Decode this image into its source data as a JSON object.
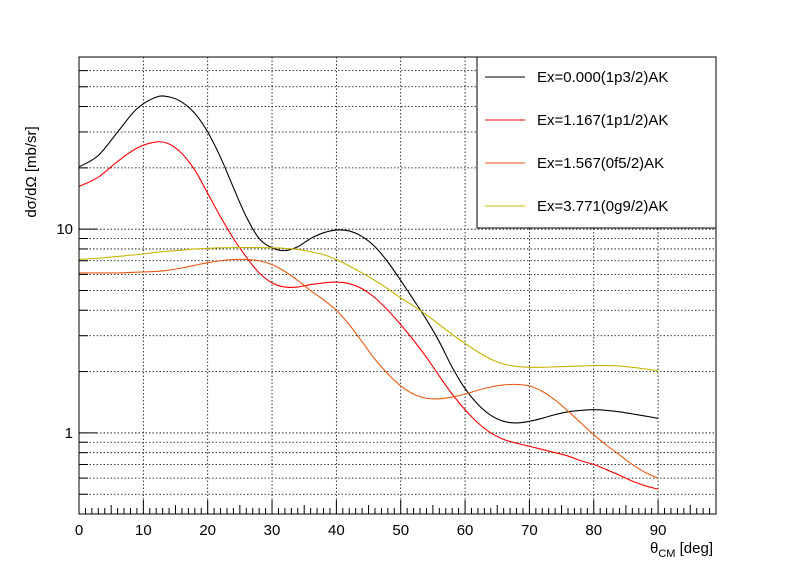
{
  "chart_data": {
    "type": "line",
    "title": "",
    "xlabel": "θ",
    "xlabel_sub": "CM",
    "xlabel_unit": " [deg]",
    "ylabel": "dσ/dΩ [mb/sr]",
    "xlim": [
      0,
      99
    ],
    "ylim": [
      0.4,
      70
    ],
    "yscale": "log",
    "grid": true,
    "legend_position": "top-right",
    "x_tick_labels": [
      "0",
      "10",
      "20",
      "30",
      "40",
      "50",
      "60",
      "70",
      "80",
      "90"
    ],
    "y_tick_labels": [
      "1",
      "10"
    ],
    "series": [
      {
        "name": "Ex=0.000(1p3/2)AK",
        "color": "#000000",
        "x": [
          0,
          3,
          6,
          9,
          12,
          14,
          16,
          18,
          20,
          22,
          24,
          26,
          28,
          30,
          32,
          34,
          36,
          38,
          40,
          42,
          44,
          46,
          48,
          50,
          52,
          54,
          56,
          58,
          60,
          62,
          64,
          66,
          68,
          70,
          72,
          74,
          76,
          78,
          80,
          82,
          84,
          86,
          88,
          90
        ],
        "y": [
          20.2,
          23,
          30,
          39,
          44.5,
          44.6,
          42,
          37,
          30,
          22.5,
          16,
          11.5,
          9.0,
          8.1,
          7.85,
          8.2,
          9.0,
          9.6,
          9.9,
          9.8,
          9.2,
          8.2,
          6.9,
          5.6,
          4.5,
          3.6,
          2.8,
          2.1,
          1.65,
          1.38,
          1.22,
          1.14,
          1.12,
          1.14,
          1.18,
          1.23,
          1.27,
          1.29,
          1.3,
          1.29,
          1.27,
          1.24,
          1.21,
          1.18
        ]
      },
      {
        "name": "Ex=1.167(1p1/2)AK",
        "color": "#ff0000",
        "x": [
          0,
          3,
          6,
          9,
          12,
          14,
          16,
          18,
          20,
          22,
          24,
          26,
          28,
          30,
          32,
          34,
          36,
          38,
          40,
          42,
          44,
          46,
          48,
          50,
          52,
          54,
          56,
          58,
          60,
          62,
          64,
          66,
          68,
          70,
          72,
          74,
          76,
          78,
          80,
          82,
          84,
          86,
          88,
          90
        ],
        "y": [
          16.2,
          18,
          21.5,
          25,
          26.8,
          26.2,
          23.5,
          19.5,
          15,
          11.5,
          9.0,
          7.3,
          6.1,
          5.45,
          5.2,
          5.2,
          5.35,
          5.45,
          5.5,
          5.4,
          5.1,
          4.6,
          4.0,
          3.4,
          2.85,
          2.35,
          1.9,
          1.55,
          1.3,
          1.12,
          1.0,
          0.93,
          0.89,
          0.86,
          0.83,
          0.8,
          0.77,
          0.73,
          0.7,
          0.66,
          0.62,
          0.58,
          0.55,
          0.53
        ]
      },
      {
        "name": "Ex=1.567(0f5/2)AK",
        "color": "#e85a10",
        "x": [
          0,
          3,
          6,
          9,
          12,
          14,
          16,
          18,
          20,
          22,
          24,
          26,
          28,
          30,
          32,
          34,
          36,
          38,
          40,
          42,
          44,
          46,
          48,
          50,
          52,
          54,
          56,
          58,
          60,
          62,
          64,
          66,
          68,
          70,
          72,
          74,
          76,
          78,
          80,
          82,
          84,
          86,
          88,
          90
        ],
        "y": [
          6.1,
          6.1,
          6.1,
          6.15,
          6.2,
          6.3,
          6.45,
          6.65,
          6.85,
          7.0,
          7.1,
          7.1,
          7.0,
          6.7,
          6.2,
          5.6,
          5.0,
          4.5,
          4.0,
          3.4,
          2.8,
          2.3,
          1.95,
          1.7,
          1.55,
          1.48,
          1.47,
          1.5,
          1.55,
          1.62,
          1.68,
          1.72,
          1.73,
          1.7,
          1.6,
          1.45,
          1.28,
          1.12,
          0.98,
          0.87,
          0.78,
          0.7,
          0.64,
          0.6
        ]
      },
      {
        "name": "Ex=3.771(0g9/2)AK",
        "color": "#c8b400",
        "x": [
          0,
          3,
          6,
          9,
          12,
          14,
          16,
          18,
          20,
          22,
          24,
          26,
          28,
          30,
          32,
          34,
          36,
          38,
          40,
          42,
          44,
          46,
          48,
          50,
          52,
          54,
          56,
          58,
          60,
          62,
          64,
          66,
          68,
          70,
          72,
          74,
          76,
          78,
          80,
          82,
          84,
          86,
          88,
          90
        ],
        "y": [
          7.1,
          7.2,
          7.35,
          7.5,
          7.7,
          7.8,
          7.9,
          8.0,
          8.05,
          8.1,
          8.12,
          8.13,
          8.12,
          8.1,
          8.05,
          7.95,
          7.75,
          7.5,
          7.1,
          6.6,
          6.1,
          5.6,
          5.1,
          4.6,
          4.2,
          3.8,
          3.4,
          3.05,
          2.75,
          2.5,
          2.3,
          2.18,
          2.12,
          2.1,
          2.1,
          2.11,
          2.12,
          2.13,
          2.14,
          2.14,
          2.13,
          2.1,
          2.06,
          2.02
        ]
      }
    ]
  }
}
